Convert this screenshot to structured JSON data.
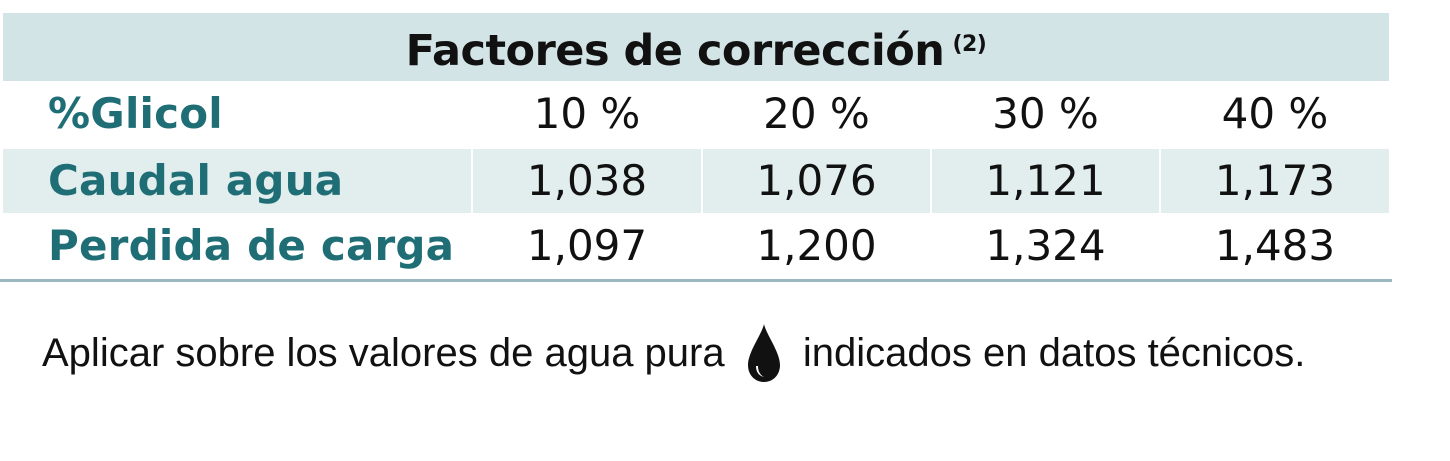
{
  "table": {
    "title": "Factores de corrección",
    "title_note": "(2)",
    "header": {
      "label": "%Glicol",
      "values": [
        "10 %",
        "20 %",
        "30 %",
        "40 %"
      ]
    },
    "rows": [
      {
        "label": "Caudal agua",
        "values": [
          "1,038",
          "1,076",
          "1,121",
          "1,173"
        ]
      },
      {
        "label": "Perdida de carga",
        "values": [
          "1,097",
          "1,200",
          "1,324",
          "1,483"
        ]
      }
    ]
  },
  "note": {
    "text_before": "Aplicar sobre los valores de agua pura",
    "icon": "water-drop-icon",
    "text_after": "indicados en datos técnicos."
  },
  "colors": {
    "title_band": "#d3e4e6",
    "row_shade": "#e2edee",
    "label_text": "#1f6e76",
    "rule": "#9ab8c0"
  }
}
